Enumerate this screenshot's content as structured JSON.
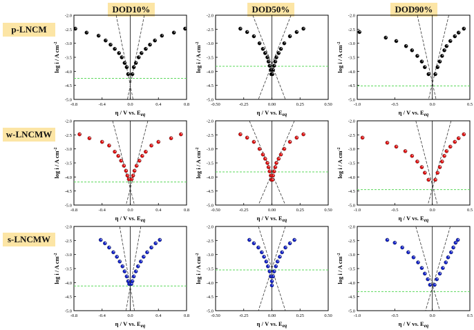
{
  "columns": [
    "DOD10%",
    "DOD50%",
    "DOD90%"
  ],
  "rows": [
    "p-LNCM",
    "w-LNCMW",
    "s-LNCMW"
  ],
  "colors": {
    "p-LNCM": "#000000",
    "w-LNCMW": "#e01010",
    "s-LNCMW": "#1020c8",
    "fit_line": "#333333",
    "eq_line": "#5ad85a"
  },
  "xlabel_main": "η / V vs. E",
  "xlabel_sub": "eq",
  "ylabel": "log i / A cm",
  "ylabel_sup": "-2",
  "chart_data": [
    {
      "type": "scatter",
      "row": "p-LNCM",
      "column": "DOD10%",
      "xlim": [
        -0.8,
        0.8
      ],
      "xticks": [
        "-0.8",
        "-0.4",
        "0.0",
        "0.4",
        "0.8"
      ],
      "ylim": [
        -5.0,
        -2.0
      ],
      "yticks": [
        "-2.0",
        "-2.5",
        "-3.0",
        "-3.5",
        "-4.0",
        "-4.5",
        "-5.0"
      ],
      "equilibrium_log_i": -4.25,
      "tafel_lines": [
        [
          [
            -0.2,
            -2.0
          ],
          [
            0.04,
            -5.0
          ]
        ],
        [
          [
            0.2,
            -2.0
          ],
          [
            -0.04,
            -5.0
          ]
        ]
      ],
      "points": [
        [
          -0.78,
          -2.48
        ],
        [
          -0.62,
          -2.62
        ],
        [
          -0.45,
          -2.73
        ],
        [
          -0.35,
          -2.9
        ],
        [
          -0.28,
          -3.05
        ],
        [
          -0.22,
          -3.2
        ],
        [
          -0.16,
          -3.35
        ],
        [
          -0.12,
          -3.5
        ],
        [
          -0.08,
          -3.7
        ],
        [
          -0.05,
          -3.85
        ],
        [
          -0.03,
          -4.1
        ],
        [
          0.03,
          -4.1
        ],
        [
          0.05,
          -3.85
        ],
        [
          0.08,
          -3.7
        ],
        [
          0.12,
          -3.5
        ],
        [
          0.16,
          -3.35
        ],
        [
          0.22,
          -3.2
        ],
        [
          0.28,
          -3.05
        ],
        [
          0.35,
          -2.9
        ],
        [
          0.45,
          -2.73
        ],
        [
          0.62,
          -2.62
        ],
        [
          0.78,
          -2.48
        ]
      ]
    },
    {
      "type": "scatter",
      "row": "p-LNCM",
      "column": "DOD50%",
      "xlim": [
        -0.5,
        0.5
      ],
      "xticks": [
        "-0.50",
        "-0.25",
        "0.00",
        "0.25",
        "0.50"
      ],
      "ylim": [
        -5.0,
        -2.0
      ],
      "yticks": [
        "-2.0",
        "-2.5",
        "-3.0",
        "-3.5",
        "-4.0",
        "-4.5",
        "-5.0"
      ],
      "equilibrium_log_i": -3.82,
      "tafel_lines": [
        [
          [
            -0.17,
            -2.0
          ],
          [
            0.12,
            -5.0
          ]
        ],
        [
          [
            0.17,
            -2.0
          ],
          [
            -0.12,
            -5.0
          ]
        ]
      ],
      "points": [
        [
          -0.28,
          -2.48
        ],
        [
          -0.22,
          -2.6
        ],
        [
          -0.16,
          -2.75
        ],
        [
          -0.11,
          -3.0
        ],
        [
          -0.08,
          -3.2
        ],
        [
          -0.06,
          -3.35
        ],
        [
          -0.04,
          -3.5
        ],
        [
          -0.03,
          -3.65
        ],
        [
          -0.02,
          -3.8
        ],
        [
          -0.01,
          -3.95
        ],
        [
          -0.005,
          -4.1
        ],
        [
          0.005,
          -4.1
        ],
        [
          0.01,
          -3.95
        ],
        [
          0.02,
          -3.8
        ],
        [
          0.03,
          -3.65
        ],
        [
          0.04,
          -3.5
        ],
        [
          0.06,
          -3.35
        ],
        [
          0.08,
          -3.2
        ],
        [
          0.11,
          -3.0
        ],
        [
          0.16,
          -2.75
        ],
        [
          0.22,
          -2.6
        ],
        [
          0.28,
          -2.48
        ]
      ]
    },
    {
      "type": "scatter",
      "row": "p-LNCM",
      "column": "DOD90%",
      "xlim": [
        -1.0,
        0.5
      ],
      "xticks": [
        "-1.0",
        "-0.5",
        "0.0",
        "0.5"
      ],
      "ylim": [
        -5.0,
        -2.0
      ],
      "yticks": [
        "-2.0",
        "-2.5",
        "-3.0",
        "-3.5",
        "-4.0",
        "-4.5",
        "-5.0"
      ],
      "equilibrium_log_i": -4.52,
      "tafel_lines": [
        [
          [
            -0.2,
            -2.0
          ],
          [
            0.05,
            -5.0
          ]
        ],
        [
          [
            0.22,
            -2.0
          ],
          [
            -0.05,
            -5.0
          ]
        ]
      ],
      "points": [
        [
          -0.97,
          -2.6
        ],
        [
          -0.62,
          -2.8
        ],
        [
          -0.48,
          -2.92
        ],
        [
          -0.35,
          -3.1
        ],
        [
          -0.27,
          -3.25
        ],
        [
          -0.2,
          -3.45
        ],
        [
          -0.14,
          -3.65
        ],
        [
          -0.1,
          -3.85
        ],
        [
          -0.05,
          -4.1
        ],
        [
          0.04,
          -4.1
        ],
        [
          0.07,
          -3.85
        ],
        [
          0.1,
          -3.65
        ],
        [
          0.13,
          -3.45
        ],
        [
          0.16,
          -3.25
        ],
        [
          0.19,
          -3.1
        ],
        [
          0.24,
          -2.92
        ],
        [
          0.3,
          -2.75
        ],
        [
          0.35,
          -2.62
        ],
        [
          0.42,
          -2.48
        ]
      ]
    },
    {
      "type": "scatter",
      "row": "w-LNCMW",
      "column": "DOD10%",
      "xlim": [
        -0.8,
        0.8
      ],
      "xticks": [
        "-0.8",
        "-0.4",
        "0.0",
        "0.4",
        "0.8"
      ],
      "ylim": [
        -5.0,
        -2.0
      ],
      "yticks": [
        "-2.0",
        "-2.5",
        "-3.0",
        "-3.5",
        "-4.0",
        "-4.5",
        "-5.0"
      ],
      "equilibrium_log_i": -4.18,
      "tafel_lines": [
        [
          [
            -0.25,
            -2.0
          ],
          [
            0.06,
            -5.0
          ]
        ],
        [
          [
            0.25,
            -2.0
          ],
          [
            -0.06,
            -5.0
          ]
        ]
      ],
      "points": [
        [
          -0.72,
          -2.48
        ],
        [
          -0.58,
          -2.62
        ],
        [
          -0.4,
          -2.75
        ],
        [
          -0.3,
          -2.88
        ],
        [
          -0.22,
          -3.1
        ],
        [
          -0.17,
          -3.25
        ],
        [
          -0.13,
          -3.42
        ],
        [
          -0.09,
          -3.6
        ],
        [
          -0.06,
          -3.78
        ],
        [
          -0.04,
          -3.95
        ],
        [
          -0.02,
          -4.08
        ],
        [
          0.02,
          -4.08
        ],
        [
          0.04,
          -3.95
        ],
        [
          0.06,
          -3.78
        ],
        [
          0.09,
          -3.6
        ],
        [
          0.13,
          -3.42
        ],
        [
          0.17,
          -3.25
        ],
        [
          0.22,
          -3.1
        ],
        [
          0.3,
          -2.88
        ],
        [
          0.4,
          -2.75
        ],
        [
          0.58,
          -2.62
        ],
        [
          0.72,
          -2.48
        ]
      ]
    },
    {
      "type": "scatter",
      "row": "w-LNCMW",
      "column": "DOD50%",
      "xlim": [
        -0.5,
        0.5
      ],
      "xticks": [
        "-0.50",
        "-0.25",
        "0.00",
        "0.25",
        "0.50"
      ],
      "ylim": [
        -5.0,
        -2.0
      ],
      "yticks": [
        "-2.0",
        "-2.5",
        "-3.0",
        "-3.5",
        "-4.0",
        "-4.5",
        "-5.0"
      ],
      "equilibrium_log_i": -3.82,
      "tafel_lines": [
        [
          [
            -0.2,
            -2.0
          ],
          [
            0.12,
            -5.0
          ]
        ],
        [
          [
            0.2,
            -2.0
          ],
          [
            -0.12,
            -5.0
          ]
        ]
      ],
      "points": [
        [
          -0.28,
          -2.48
        ],
        [
          -0.22,
          -2.6
        ],
        [
          -0.16,
          -2.75
        ],
        [
          -0.11,
          -3.0
        ],
        [
          -0.08,
          -3.2
        ],
        [
          -0.06,
          -3.35
        ],
        [
          -0.04,
          -3.5
        ],
        [
          -0.03,
          -3.65
        ],
        [
          -0.02,
          -3.8
        ],
        [
          -0.01,
          -3.95
        ],
        [
          -0.005,
          -4.1
        ],
        [
          0.005,
          -4.1
        ],
        [
          0.01,
          -3.95
        ],
        [
          0.02,
          -3.8
        ],
        [
          0.03,
          -3.65
        ],
        [
          0.04,
          -3.5
        ],
        [
          0.06,
          -3.35
        ],
        [
          0.08,
          -3.2
        ],
        [
          0.11,
          -3.0
        ],
        [
          0.16,
          -2.75
        ],
        [
          0.22,
          -2.6
        ],
        [
          0.28,
          -2.48
        ]
      ]
    },
    {
      "type": "scatter",
      "row": "w-LNCMW",
      "column": "DOD90%",
      "xlim": [
        -1.0,
        0.5
      ],
      "xticks": [
        "-1.0",
        "-0.5",
        "0.0",
        "0.5"
      ],
      "ylim": [
        -5.0,
        -2.0
      ],
      "yticks": [
        "-2.0",
        "-2.5",
        "-3.0",
        "-3.5",
        "-4.0",
        "-4.5",
        "-5.0"
      ],
      "equilibrium_log_i": -4.45,
      "tafel_lines": [
        [
          [
            -0.22,
            -2.0
          ],
          [
            0.07,
            -5.0
          ]
        ],
        [
          [
            0.25,
            -2.0
          ],
          [
            -0.06,
            -5.0
          ]
        ]
      ],
      "points": [
        [
          -0.93,
          -2.6
        ],
        [
          -0.6,
          -2.78
        ],
        [
          -0.48,
          -2.92
        ],
        [
          -0.36,
          -3.08
        ],
        [
          -0.27,
          -3.25
        ],
        [
          -0.2,
          -3.45
        ],
        [
          -0.14,
          -3.65
        ],
        [
          -0.1,
          -3.85
        ],
        [
          -0.05,
          -4.1
        ],
        [
          0.04,
          -4.1
        ],
        [
          0.07,
          -3.85
        ],
        [
          0.1,
          -3.65
        ],
        [
          0.13,
          -3.45
        ],
        [
          0.16,
          -3.25
        ],
        [
          0.19,
          -3.08
        ],
        [
          0.24,
          -2.92
        ],
        [
          0.3,
          -2.75
        ],
        [
          0.35,
          -2.62
        ],
        [
          0.42,
          -2.48
        ]
      ]
    },
    {
      "type": "scatter",
      "row": "s-LNCMW",
      "column": "DOD10%",
      "xlim": [
        -0.8,
        0.8
      ],
      "xticks": [
        "-0.8",
        "-0.4",
        "0.0",
        "0.4",
        "0.8"
      ],
      "ylim": [
        -5.0,
        -2.0
      ],
      "yticks": [
        "-2.0",
        "-2.5",
        "-3.0",
        "-3.5",
        "-4.0",
        "-4.5",
        "-5.0"
      ],
      "equilibrium_log_i": -4.12,
      "tafel_lines": [
        [
          [
            -0.15,
            -2.0
          ],
          [
            0.06,
            -5.0
          ]
        ],
        [
          [
            0.15,
            -2.0
          ],
          [
            -0.06,
            -5.0
          ]
        ]
      ],
      "points": [
        [
          -0.42,
          -2.48
        ],
        [
          -0.36,
          -2.6
        ],
        [
          -0.3,
          -2.75
        ],
        [
          -0.24,
          -2.92
        ],
        [
          -0.19,
          -3.08
        ],
        [
          -0.15,
          -3.25
        ],
        [
          -0.11,
          -3.42
        ],
        [
          -0.08,
          -3.6
        ],
        [
          -0.05,
          -3.78
        ],
        [
          -0.03,
          -3.95
        ],
        [
          -0.015,
          -4.05
        ],
        [
          0.015,
          -4.05
        ],
        [
          0.03,
          -3.95
        ],
        [
          0.05,
          -3.78
        ],
        [
          0.08,
          -3.6
        ],
        [
          0.11,
          -3.42
        ],
        [
          0.15,
          -3.25
        ],
        [
          0.19,
          -3.08
        ],
        [
          0.24,
          -2.92
        ],
        [
          0.3,
          -2.75
        ],
        [
          0.36,
          -2.6
        ],
        [
          0.42,
          -2.48
        ]
      ]
    },
    {
      "type": "scatter",
      "row": "s-LNCMW",
      "column": "DOD50%",
      "xlim": [
        -0.5,
        0.5
      ],
      "xticks": [
        "-0.50",
        "-0.25",
        "0.00",
        "0.25",
        "0.50"
      ],
      "ylim": [
        -5.0,
        -2.0
      ],
      "yticks": [
        "-2.0",
        "-2.5",
        "-3.0",
        "-3.5",
        "-4.0",
        "-4.5",
        "-5.0"
      ],
      "equilibrium_log_i": -3.55,
      "tafel_lines": [
        [
          [
            -0.12,
            -2.0
          ],
          [
            0.12,
            -5.0
          ]
        ],
        [
          [
            0.12,
            -2.0
          ],
          [
            -0.12,
            -5.0
          ]
        ]
      ],
      "points": [
        [
          -0.2,
          -2.48
        ],
        [
          -0.16,
          -2.6
        ],
        [
          -0.12,
          -2.75
        ],
        [
          -0.09,
          -2.92
        ],
        [
          -0.07,
          -3.08
        ],
        [
          -0.05,
          -3.25
        ],
        [
          -0.035,
          -3.42
        ],
        [
          -0.02,
          -3.6
        ],
        [
          -0.01,
          -3.78
        ],
        [
          0.0,
          -3.95
        ],
        [
          0.0,
          -4.1
        ],
        [
          0.01,
          -3.78
        ],
        [
          0.02,
          -3.6
        ],
        [
          0.035,
          -3.42
        ],
        [
          0.05,
          -3.25
        ],
        [
          0.07,
          -3.08
        ],
        [
          0.09,
          -2.92
        ],
        [
          0.12,
          -2.75
        ],
        [
          0.16,
          -2.6
        ],
        [
          0.2,
          -2.48
        ]
      ]
    },
    {
      "type": "scatter",
      "row": "s-LNCMW",
      "column": "DOD90%",
      "xlim": [
        -1.0,
        0.5
      ],
      "xticks": [
        "-1.0",
        "-0.5",
        "0.0",
        "0.5"
      ],
      "ylim": [
        -5.0,
        -2.0
      ],
      "yticks": [
        "-2.0",
        "-2.5",
        "-3.0",
        "-3.5",
        "-4.0",
        "-4.5",
        "-5.0"
      ],
      "equilibrium_log_i": -4.32,
      "tafel_lines": [
        [
          [
            -0.22,
            -2.0
          ],
          [
            0.1,
            -5.0
          ]
        ],
        [
          [
            0.24,
            -2.0
          ],
          [
            -0.09,
            -5.0
          ]
        ]
      ],
      "points": [
        [
          -0.6,
          -2.48
        ],
        [
          -0.5,
          -2.58
        ],
        [
          -0.4,
          -2.75
        ],
        [
          -0.32,
          -2.92
        ],
        [
          -0.25,
          -3.1
        ],
        [
          -0.19,
          -3.28
        ],
        [
          -0.14,
          -3.48
        ],
        [
          -0.1,
          -3.68
        ],
        [
          -0.06,
          -3.88
        ],
        [
          -0.03,
          -4.08
        ],
        [
          0.03,
          -4.08
        ],
        [
          0.06,
          -3.88
        ],
        [
          0.1,
          -3.68
        ],
        [
          0.14,
          -3.48
        ],
        [
          0.18,
          -3.28
        ],
        [
          0.21,
          -3.1
        ],
        [
          0.25,
          -2.92
        ],
        [
          0.28,
          -2.75
        ],
        [
          0.31,
          -2.58
        ],
        [
          0.34,
          -2.48
        ]
      ]
    }
  ]
}
